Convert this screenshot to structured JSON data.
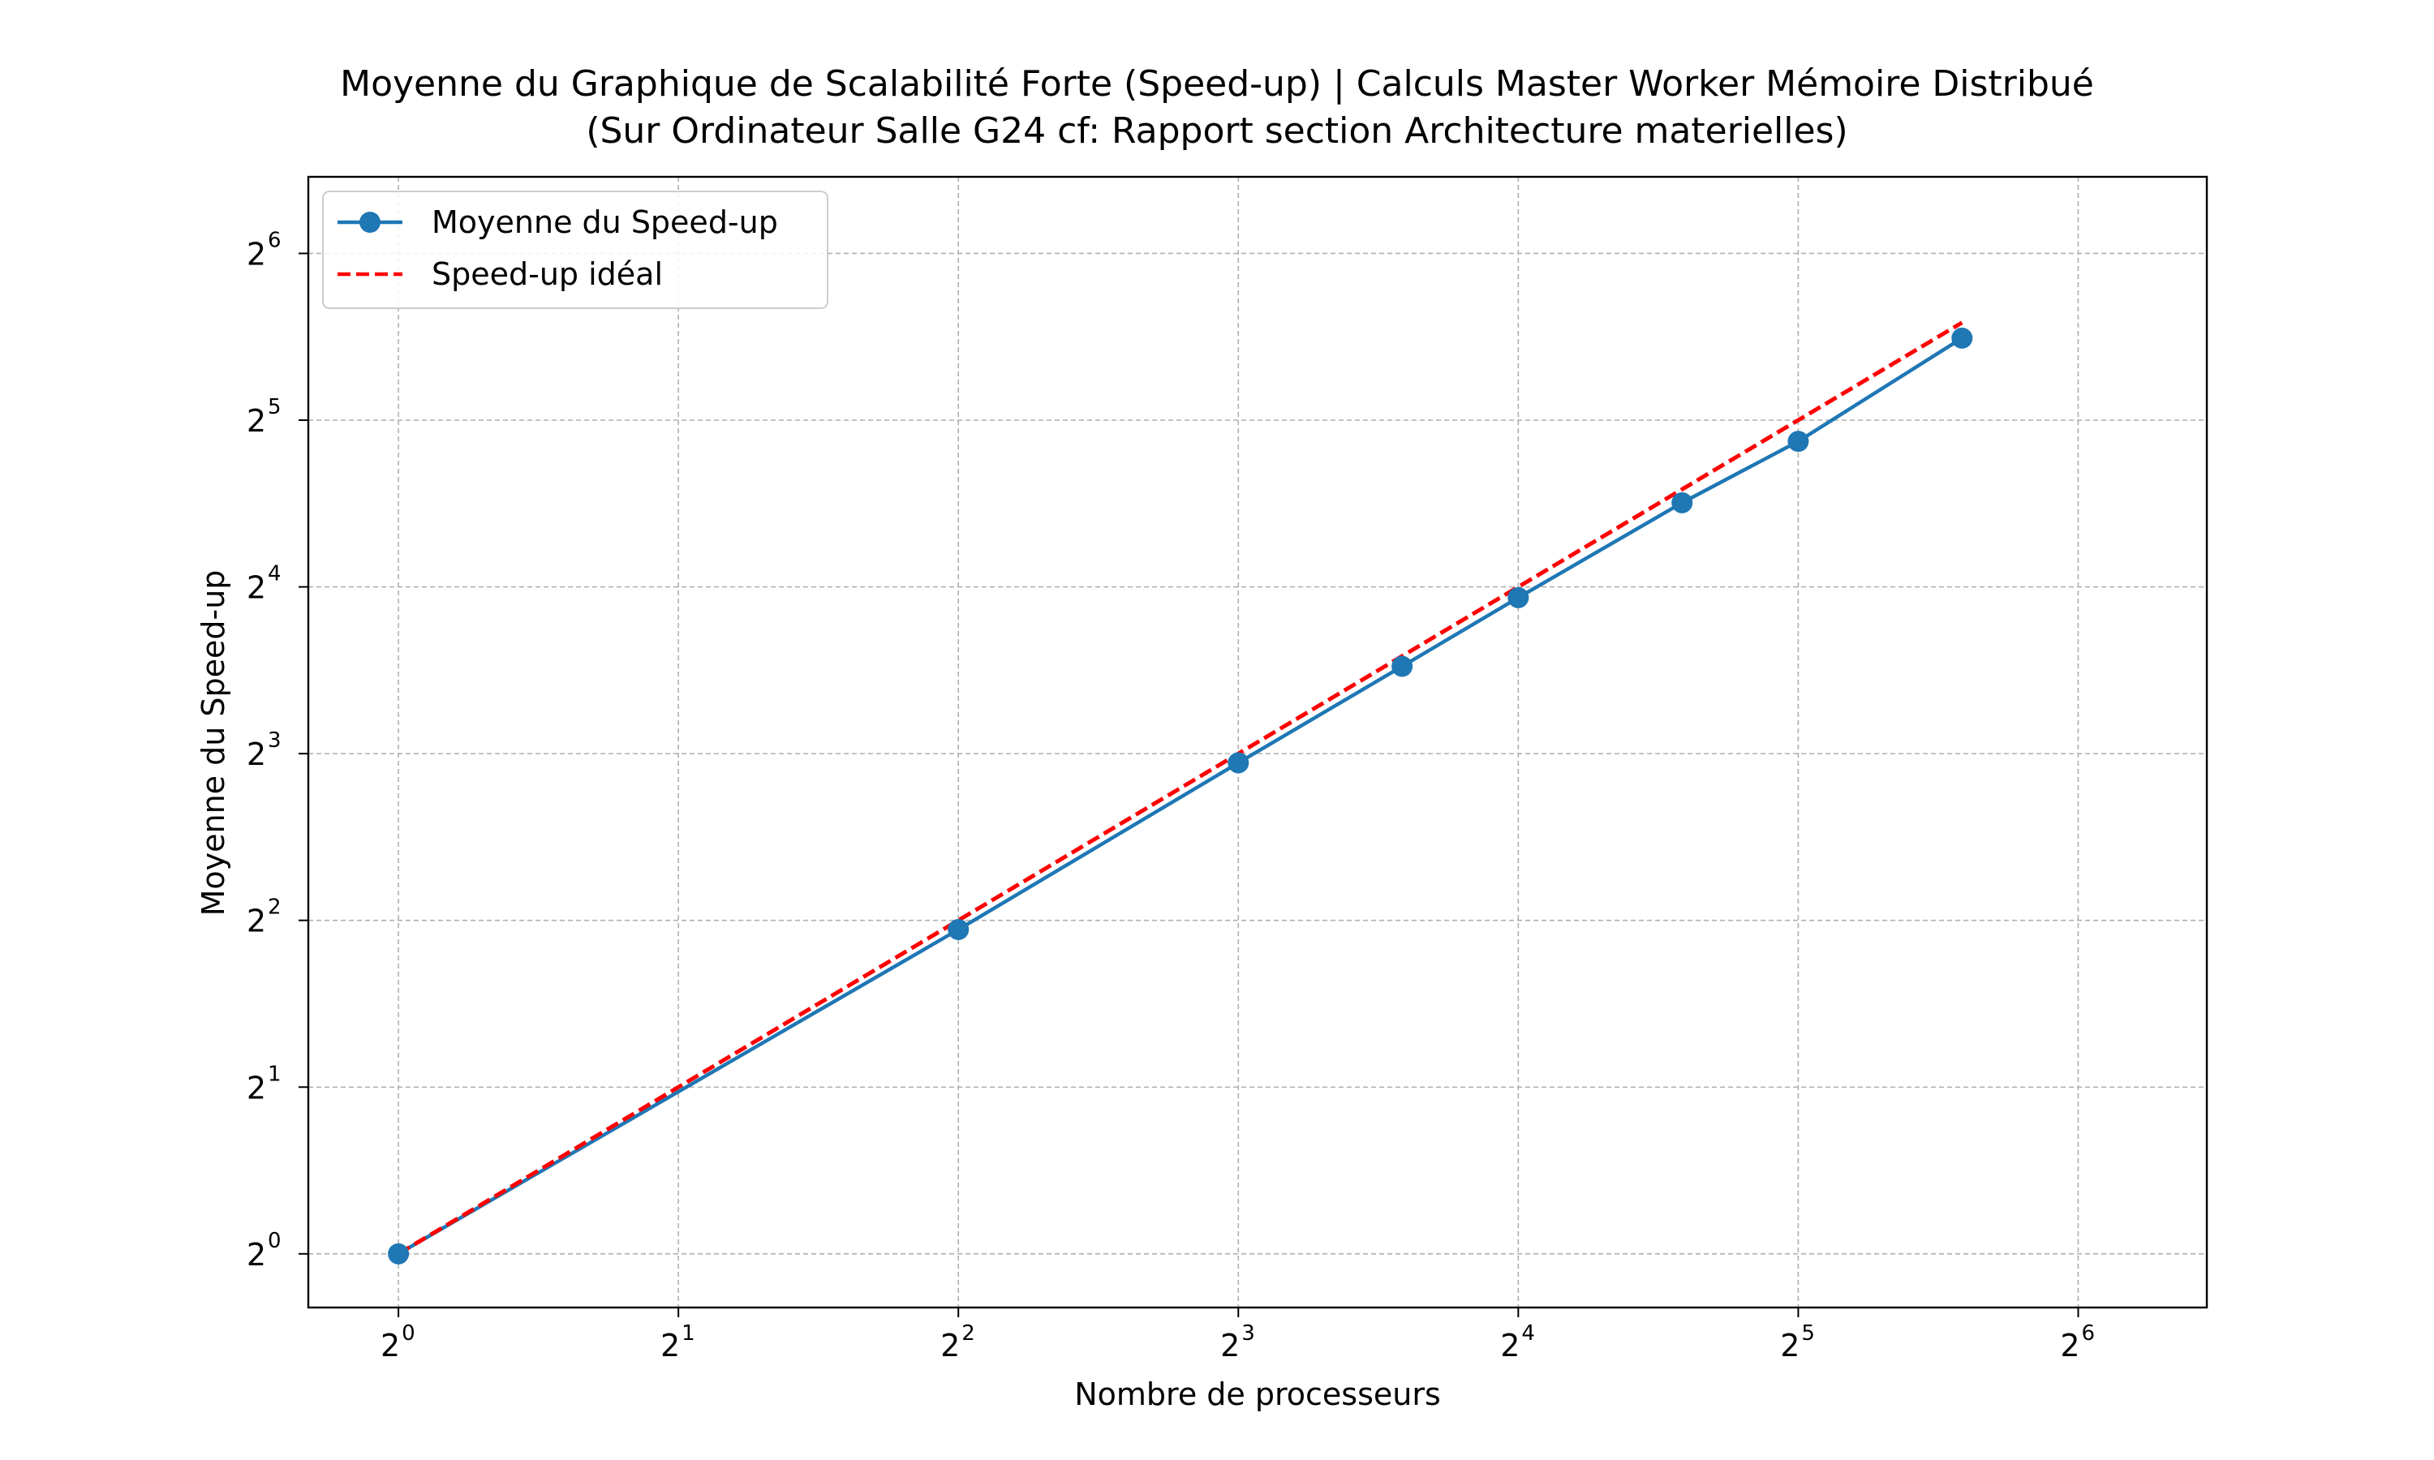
{
  "chart_data": {
    "type": "line",
    "title": [
      "Moyenne du Graphique de Scalabilité Forte (Speed-up) | Calculs Master Worker Mémoire Distribué",
      "(Sur Ordinateur Salle G24 cf: Rapport section Architecture materielles)"
    ],
    "xlabel": "Nombre de processeurs",
    "ylabel": "Moyenne du Speed-up",
    "xscale": "log2",
    "yscale": "log2",
    "xlim": [
      0.8,
      88
    ],
    "ylim": [
      0.8,
      88
    ],
    "xticks": [
      {
        "base": "2",
        "exp": "0",
        "value": 1
      },
      {
        "base": "2",
        "exp": "1",
        "value": 2
      },
      {
        "base": "2",
        "exp": "2",
        "value": 4
      },
      {
        "base": "2",
        "exp": "3",
        "value": 8
      },
      {
        "base": "2",
        "exp": "4",
        "value": 16
      },
      {
        "base": "2",
        "exp": "5",
        "value": 32
      },
      {
        "base": "2",
        "exp": "6",
        "value": 64
      }
    ],
    "yticks": [
      {
        "base": "2",
        "exp": "0",
        "value": 1
      },
      {
        "base": "2",
        "exp": "1",
        "value": 2
      },
      {
        "base": "2",
        "exp": "2",
        "value": 4
      },
      {
        "base": "2",
        "exp": "3",
        "value": 8
      },
      {
        "base": "2",
        "exp": "4",
        "value": 16
      },
      {
        "base": "2",
        "exp": "5",
        "value": 32
      },
      {
        "base": "2",
        "exp": "6",
        "value": 64
      }
    ],
    "grid": true,
    "legend_position": "top-left",
    "series": [
      {
        "name": "Moyenne du Speed-up",
        "style": "solid-marker",
        "color": "#1f77b4",
        "x": [
          1,
          4,
          8,
          12,
          16,
          24,
          32,
          48
        ],
        "y": [
          1,
          3.85,
          7.7,
          11.5,
          15.3,
          22.7,
          29.3,
          45.0
        ]
      },
      {
        "name": "Speed-up idéal",
        "style": "dashed",
        "color": "#ff0000",
        "x": [
          1,
          4,
          8,
          12,
          16,
          24,
          32,
          48
        ],
        "y": [
          1,
          4,
          8,
          12,
          16,
          24,
          32,
          48
        ]
      }
    ]
  }
}
